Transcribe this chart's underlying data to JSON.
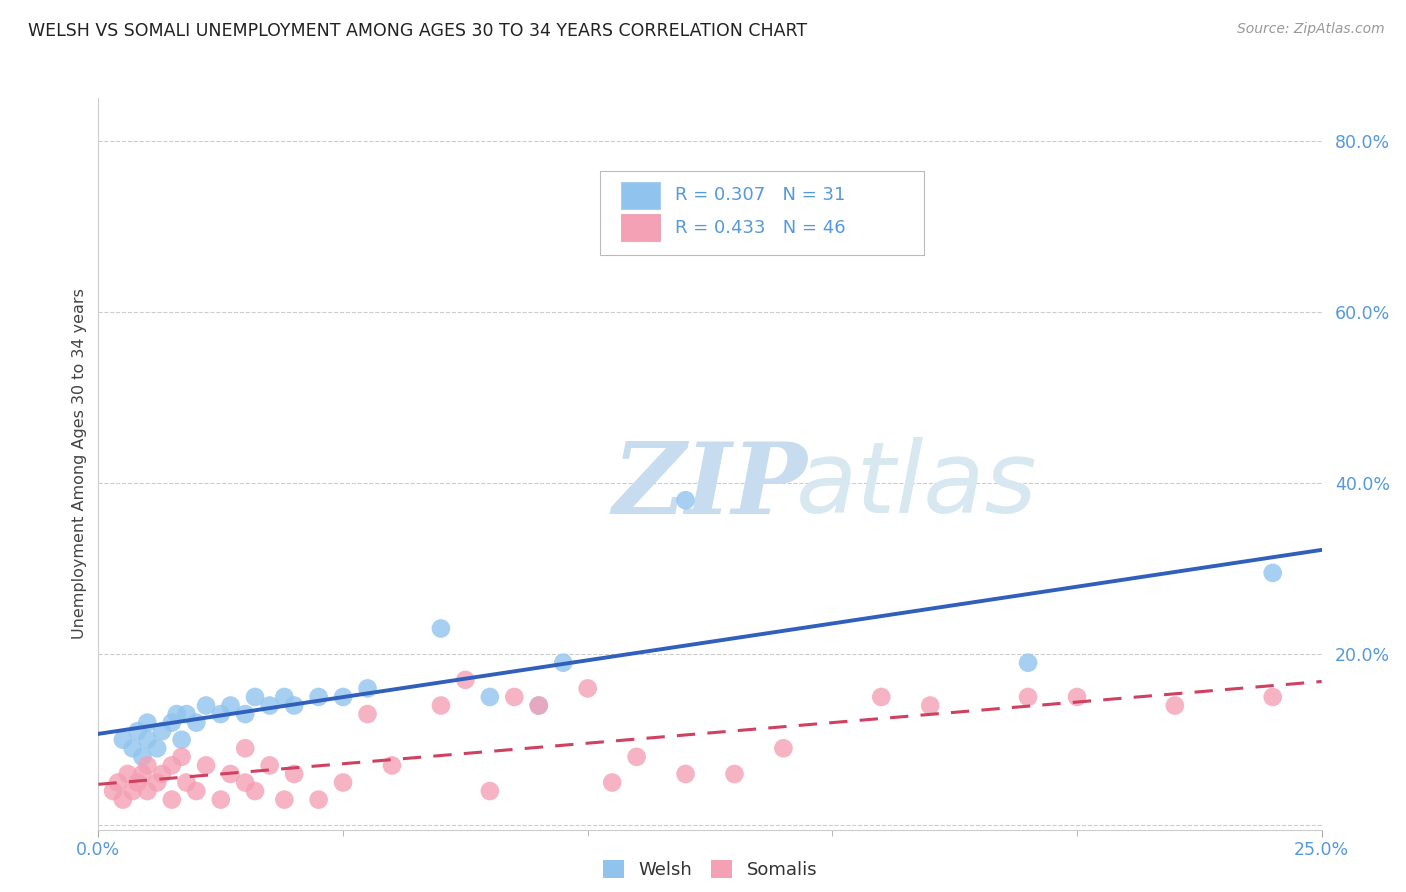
{
  "title": "WELSH VS SOMALI UNEMPLOYMENT AMONG AGES 30 TO 34 YEARS CORRELATION CHART",
  "source": "Source: ZipAtlas.com",
  "ylabel": "Unemployment Among Ages 30 to 34 years",
  "xlim": [
    0.0,
    0.25
  ],
  "ylim": [
    -0.005,
    0.85
  ],
  "yticks": [
    0.0,
    0.2,
    0.4,
    0.6,
    0.8
  ],
  "xticks": [
    0.0,
    0.25
  ],
  "xtick_minor": [
    0.05,
    0.1,
    0.15,
    0.2
  ],
  "welsh_color": "#90C4EE",
  "somali_color": "#F4A0B5",
  "welsh_line_color": "#3060BB",
  "somali_line_color": "#D04060",
  "welsh_R": 0.307,
  "welsh_N": 31,
  "somali_R": 0.433,
  "somali_N": 46,
  "legend_label_welsh": "Welsh",
  "legend_label_somali": "Somalis",
  "watermark_zip": "ZIP",
  "watermark_atlas": "atlas",
  "welsh_x": [
    0.005,
    0.007,
    0.008,
    0.009,
    0.01,
    0.01,
    0.012,
    0.013,
    0.015,
    0.016,
    0.017,
    0.018,
    0.02,
    0.022,
    0.025,
    0.027,
    0.03,
    0.032,
    0.035,
    0.038,
    0.04,
    0.045,
    0.05,
    0.055,
    0.07,
    0.08,
    0.09,
    0.095,
    0.12,
    0.19,
    0.24
  ],
  "welsh_y": [
    0.1,
    0.09,
    0.11,
    0.08,
    0.1,
    0.12,
    0.09,
    0.11,
    0.12,
    0.13,
    0.1,
    0.13,
    0.12,
    0.14,
    0.13,
    0.14,
    0.13,
    0.15,
    0.14,
    0.15,
    0.14,
    0.15,
    0.15,
    0.16,
    0.23,
    0.15,
    0.14,
    0.19,
    0.38,
    0.19,
    0.295
  ],
  "somali_x": [
    0.003,
    0.004,
    0.005,
    0.006,
    0.007,
    0.008,
    0.009,
    0.01,
    0.01,
    0.012,
    0.013,
    0.015,
    0.015,
    0.017,
    0.018,
    0.02,
    0.022,
    0.025,
    0.027,
    0.03,
    0.03,
    0.032,
    0.035,
    0.038,
    0.04,
    0.045,
    0.05,
    0.055,
    0.06,
    0.07,
    0.075,
    0.08,
    0.085,
    0.09,
    0.1,
    0.105,
    0.11,
    0.12,
    0.13,
    0.14,
    0.16,
    0.17,
    0.19,
    0.2,
    0.22,
    0.24
  ],
  "somali_y": [
    0.04,
    0.05,
    0.03,
    0.06,
    0.04,
    0.05,
    0.06,
    0.04,
    0.07,
    0.05,
    0.06,
    0.03,
    0.07,
    0.08,
    0.05,
    0.04,
    0.07,
    0.03,
    0.06,
    0.05,
    0.09,
    0.04,
    0.07,
    0.03,
    0.06,
    0.03,
    0.05,
    0.13,
    0.07,
    0.14,
    0.17,
    0.04,
    0.15,
    0.14,
    0.16,
    0.05,
    0.08,
    0.06,
    0.06,
    0.09,
    0.15,
    0.14,
    0.15,
    0.15,
    0.14,
    0.15
  ],
  "background_color": "#FFFFFF",
  "grid_color": "#CCCCCC",
  "tick_color": "#5599DD"
}
